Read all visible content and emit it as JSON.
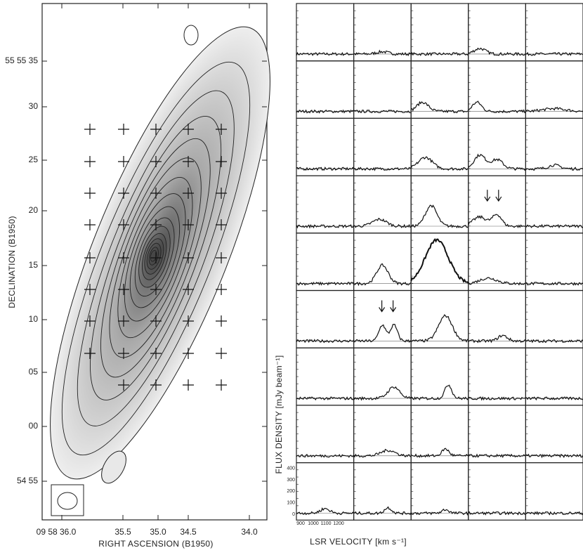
{
  "left_panel": {
    "x_axis_label": "RIGHT ASCENSION (B1950)",
    "y_axis_label": "DECLINATION (B1950)",
    "x_ticks": [
      "09 58 36.0",
      "35.5",
      "35.0",
      "34.5",
      "34.0"
    ],
    "y_ticks": [
      "55 55 35",
      "30",
      "25",
      "20",
      "15",
      "10",
      "05",
      "00",
      "54 55"
    ]
  },
  "right_panel": {
    "x_axis_label": "LSR VELOCITY [km s⁻¹]",
    "y_axis_label": "FLUX DENSITY [mJy beam⁻¹]",
    "y_ticks": [
      "400",
      "300",
      "200",
      "100",
      "0"
    ],
    "x_ticks": [
      "900",
      "1000",
      "1100",
      "1200"
    ]
  }
}
